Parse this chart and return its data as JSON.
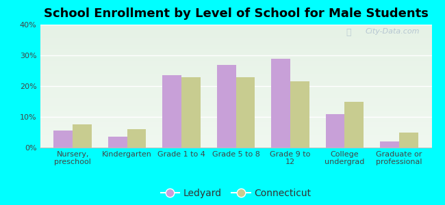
{
  "title": "School Enrollment by Level of School for Male Students",
  "categories": [
    "Nursery,\npreschool",
    "Kindergarten",
    "Grade 1 to 4",
    "Grade 5 to 8",
    "Grade 9 to\n12",
    "College\nundergrad",
    "Graduate or\nprofessional"
  ],
  "ledyard": [
    5.5,
    3.5,
    23.5,
    27.0,
    29.0,
    11.0,
    2.0
  ],
  "connecticut": [
    7.5,
    6.0,
    23.0,
    23.0,
    21.5,
    15.0,
    5.0
  ],
  "ledyard_color": "#c8a0d8",
  "connecticut_color": "#c8cc90",
  "background_color": "#00ffff",
  "ylim": [
    0,
    40
  ],
  "yticks": [
    0,
    10,
    20,
    30,
    40
  ],
  "bar_width": 0.35,
  "title_fontsize": 13,
  "tick_fontsize": 8,
  "legend_fontsize": 10,
  "watermark": "City-Data.com"
}
